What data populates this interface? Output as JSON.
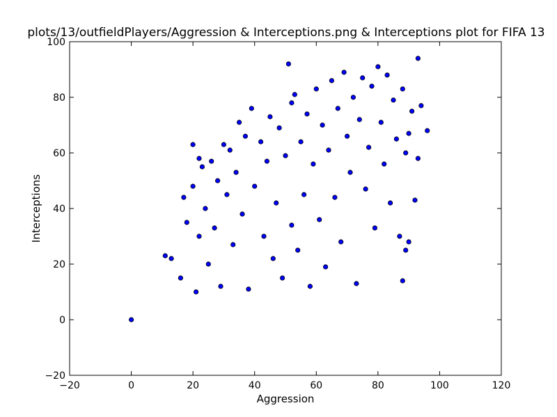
{
  "chart_data": {
    "type": "scatter",
    "title": "plots/13/outfieldPlayers/Aggression & Interceptions.png & Interceptions plot for FIFA 13",
    "xlabel": "Aggression",
    "ylabel": "Interceptions",
    "xlim": [
      -20,
      120
    ],
    "ylim": [
      -20,
      100
    ],
    "xticks": [
      "−20",
      "0",
      "20",
      "40",
      "60",
      "80",
      "100",
      "120"
    ],
    "yticks": [
      "−20",
      "0",
      "20",
      "40",
      "60",
      "80",
      "100"
    ],
    "grid": false,
    "marker_color": "#0000ff",
    "marker_edge": "#000000",
    "series": [
      {
        "points": [
          [
            0,
            0
          ],
          [
            11,
            23
          ],
          [
            13,
            22
          ],
          [
            16,
            15
          ],
          [
            17,
            44
          ],
          [
            18,
            35
          ],
          [
            20,
            63
          ],
          [
            20,
            48
          ],
          [
            21,
            10
          ],
          [
            22,
            58
          ],
          [
            22,
            30
          ],
          [
            23,
            55
          ],
          [
            24,
            40
          ],
          [
            25,
            20
          ],
          [
            26,
            57
          ],
          [
            27,
            33
          ],
          [
            28,
            50
          ],
          [
            29,
            12
          ],
          [
            30,
            63
          ],
          [
            31,
            45
          ],
          [
            32,
            61
          ],
          [
            33,
            27
          ],
          [
            34,
            53
          ],
          [
            35,
            71
          ],
          [
            36,
            38
          ],
          [
            37,
            66
          ],
          [
            38,
            11
          ],
          [
            39,
            76
          ],
          [
            40,
            48
          ],
          [
            42,
            64
          ],
          [
            43,
            30
          ],
          [
            44,
            57
          ],
          [
            45,
            73
          ],
          [
            46,
            22
          ],
          [
            47,
            42
          ],
          [
            48,
            69
          ],
          [
            49,
            15
          ],
          [
            50,
            59
          ],
          [
            51,
            92
          ],
          [
            52,
            78
          ],
          [
            52,
            34
          ],
          [
            53,
            81
          ],
          [
            54,
            25
          ],
          [
            55,
            64
          ],
          [
            56,
            45
          ],
          [
            57,
            74
          ],
          [
            58,
            12
          ],
          [
            59,
            56
          ],
          [
            60,
            83
          ],
          [
            61,
            36
          ],
          [
            62,
            70
          ],
          [
            63,
            19
          ],
          [
            64,
            61
          ],
          [
            65,
            86
          ],
          [
            66,
            44
          ],
          [
            67,
            76
          ],
          [
            68,
            28
          ],
          [
            69,
            89
          ],
          [
            70,
            66
          ],
          [
            71,
            53
          ],
          [
            72,
            80
          ],
          [
            73,
            13
          ],
          [
            74,
            72
          ],
          [
            75,
            87
          ],
          [
            76,
            47
          ],
          [
            77,
            62
          ],
          [
            78,
            84
          ],
          [
            79,
            33
          ],
          [
            80,
            91
          ],
          [
            81,
            71
          ],
          [
            82,
            56
          ],
          [
            83,
            88
          ],
          [
            84,
            42
          ],
          [
            85,
            79
          ],
          [
            86,
            65
          ],
          [
            87,
            30
          ],
          [
            88,
            14
          ],
          [
            88,
            83
          ],
          [
            89,
            60
          ],
          [
            90,
            28
          ],
          [
            91,
            75
          ],
          [
            92,
            43
          ],
          [
            93,
            94
          ],
          [
            94,
            77
          ],
          [
            96,
            68
          ],
          [
            93,
            58
          ],
          [
            90,
            67
          ],
          [
            89,
            25
          ]
        ]
      }
    ]
  }
}
